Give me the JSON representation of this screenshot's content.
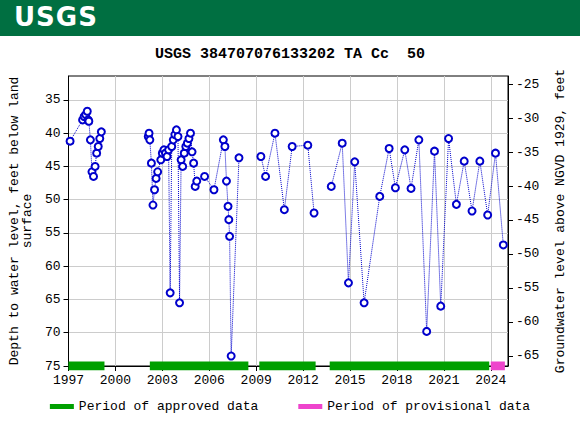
{
  "chart_data": {
    "type": "line",
    "header": "USGS",
    "title": "USGS 384707076133202 TA Cc  50",
    "y_label": "Depth to water level, feet below land\nsurface",
    "y2_label": "Groundwater level above NGVD 1929, feet",
    "grid": true,
    "xlim": [
      1997,
      2025.1
    ],
    "xticks": [
      1997,
      2000,
      2003,
      2006,
      2009,
      2012,
      2015,
      2018,
      2021,
      2024
    ],
    "ylim": [
      31.4,
      75
    ],
    "yticks": [
      35,
      40,
      45,
      50,
      55,
      60,
      65,
      70,
      75
    ],
    "y2lim": [
      -66.5,
      -23.8
    ],
    "y2ticks": [
      -65,
      -60,
      -55,
      -50,
      -45,
      -40,
      -35,
      -30,
      -25
    ],
    "x": [
      1997.1,
      1997.9,
      1998.0,
      1998.1,
      1998.2,
      1998.25,
      1998.3,
      1998.4,
      1998.5,
      1998.6,
      1998.7,
      1998.8,
      1998.9,
      1999.0,
      1999.1,
      2000.6,
      2002.1,
      2002.15,
      2002.2,
      2002.3,
      2002.4,
      2002.5,
      2002.6,
      2002.7,
      2002.9,
      2003.0,
      2003.1,
      2003.2,
      2003.3,
      2003.4,
      2003.5,
      2003.6,
      2003.7,
      2003.8,
      2003.9,
      2004.0,
      2004.1,
      2004.2,
      2004.3,
      2004.4,
      2004.5,
      2004.6,
      2004.7,
      2004.8,
      2004.9,
      2005.0,
      2005.1,
      2005.2,
      2005.7,
      2006.3,
      2006.9,
      2007.0,
      2007.1,
      2007.2,
      2007.25,
      2007.3,
      2007.4,
      2007.9,
      2008.6,
      2009.3,
      2009.6,
      2010.2,
      2010.8,
      2011.3,
      2012.3,
      2012.7,
      2013.2,
      2013.8,
      2014.5,
      2014.9,
      2015.3,
      2015.9,
      2016.9,
      2017.5,
      2017.9,
      2018.5,
      2018.9,
      2019.4,
      2019.9,
      2020.4,
      2020.8,
      2021.3,
      2021.8,
      2022.3,
      2022.8,
      2023.3,
      2023.8,
      2024.3,
      2024.8
    ],
    "series": [
      {
        "color": "#0000cc",
        "marker": "circle",
        "line_style": "dotted",
        "values": [
          41.2,
          38,
          37.5,
          37.2,
          36.7,
          38,
          38.2,
          41,
          45.8,
          46.5,
          45,
          43,
          42,
          40.8,
          39.8,
          null,
          40.5,
          40,
          41,
          44.5,
          50.8,
          48.5,
          46.8,
          45.8,
          44,
          43,
          42.5,
          43,
          43.5,
          42.5,
          64,
          42,
          41,
          40.2,
          39.5,
          40.5,
          65.5,
          44,
          45,
          43,
          42,
          41.5,
          40.8,
          40,
          42.8,
          44.5,
          48,
          47.2,
          46.5,
          48.5,
          41,
          42,
          47.2,
          51,
          53,
          55.5,
          73.5,
          43.7,
          null,
          43.5,
          46.5,
          40,
          51.5,
          42,
          41.8,
          52,
          null,
          48,
          41.5,
          62.5,
          44.3,
          65.5,
          49.5,
          42.3,
          48.2,
          42.5,
          48.3,
          41,
          69.8,
          42.7,
          66,
          40.8,
          50.7,
          44.2,
          51.7,
          44.2,
          52.3,
          43,
          56.8
        ]
      }
    ],
    "periods": [
      {
        "name": "Period of approved data",
        "color": "#00a000",
        "ranges": [
          [
            1997,
            1999.3
          ],
          [
            2002.2,
            2008.5
          ],
          [
            2009.2,
            2012.8
          ],
          [
            2013.7,
            2023.9
          ]
        ]
      },
      {
        "name": "Period of provisional data",
        "color": "#ee44cc",
        "ranges": [
          [
            2024.0,
            2024.9
          ]
        ]
      }
    ]
  }
}
